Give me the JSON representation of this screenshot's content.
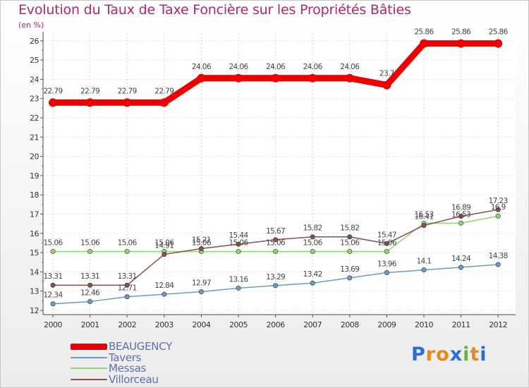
{
  "title": "Evolution du Taux de Taxe Foncière sur les Propriétés Bâties",
  "unit_label": "(en %)",
  "logo": {
    "text": "Proxiti",
    "letters": [
      "P",
      "r",
      "o",
      "x",
      "i",
      "t",
      "i"
    ],
    "colors": [
      "#2b6fd6",
      "#e68a1f",
      "#e68a1f",
      "#2b6fd6",
      "#6ab04c",
      "#e68a1f",
      "#2b6fd6"
    ]
  },
  "chart_data": {
    "type": "line",
    "title": "Evolution du Taux de Taxe Foncière sur les Propriétés Bâties",
    "ylabel": "(en %)",
    "xlabel": "",
    "x": [
      "2000",
      "2001",
      "2002",
      "2003",
      "2004",
      "2005",
      "2006",
      "2007",
      "2008",
      "2009",
      "2010",
      "2011",
      "2012"
    ],
    "ylim": [
      12,
      26
    ],
    "yticks": [
      "12",
      "13",
      "14",
      "15",
      "16",
      "17",
      "18",
      "19",
      "20",
      "21",
      "22",
      "23",
      "24",
      "25",
      "26"
    ],
    "grid": true,
    "legend_position": "bottom-left",
    "series": [
      {
        "name": "BEAUGENCY",
        "color": "#ee0000",
        "values": [
          22.79,
          22.79,
          22.79,
          22.79,
          24.06,
          24.06,
          24.06,
          24.06,
          24.06,
          23.7,
          25.86,
          25.86,
          25.86
        ],
        "labels": [
          "22.79",
          "22.79",
          "22.79",
          "22.79",
          "24.06",
          "24.06",
          "24.06",
          "24.06",
          "24.06",
          "23.7",
          "25.86",
          "25.86",
          "25.86"
        ]
      },
      {
        "name": "Tavers",
        "color": "#6b9cc6",
        "values": [
          12.34,
          12.46,
          12.71,
          12.84,
          12.97,
          13.16,
          13.29,
          13.42,
          13.69,
          13.96,
          14.1,
          14.24,
          14.38
        ],
        "labels": [
          "12.34",
          "12.46",
          "12.71",
          "12.84",
          "12.97",
          "13.16",
          "13.29",
          "13.42",
          "13.69",
          "13.96",
          "14.1",
          "14.24",
          "14.38"
        ]
      },
      {
        "name": "Messas",
        "color": "#8fd66b",
        "values": [
          15.06,
          15.06,
          15.06,
          15.06,
          15.06,
          15.06,
          15.06,
          15.06,
          15.06,
          15.06,
          16.53,
          16.53,
          16.9
        ],
        "labels": [
          "15.06",
          "15.06",
          "15.06",
          "15.06",
          "15.06",
          "15.06",
          "15.06",
          "15.06",
          "15.06",
          "15.06",
          "16.53",
          "16.53",
          "16.9"
        ]
      },
      {
        "name": "Villorceau",
        "color": "#8a4f4f",
        "values": [
          13.31,
          13.31,
          13.31,
          14.91,
          15.21,
          15.44,
          15.67,
          15.82,
          15.82,
          15.47,
          16.41,
          16.89,
          17.23
        ],
        "labels": [
          "13.31",
          "13.31",
          "13.31",
          "14.91",
          "15.21",
          "15.44",
          "15.67",
          "15.82",
          "15.82",
          "15.47",
          "16.41",
          "16.89",
          "17.23"
        ]
      }
    ]
  }
}
